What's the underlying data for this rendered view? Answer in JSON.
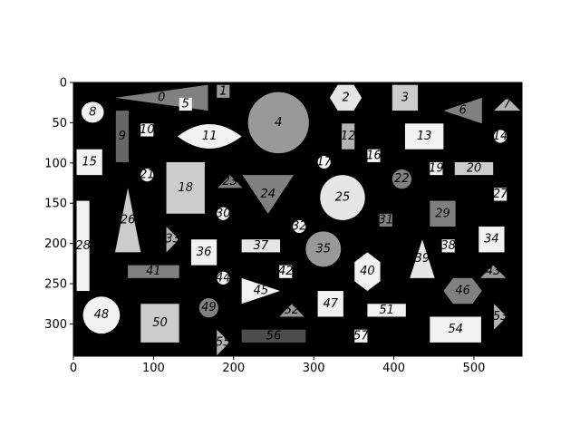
{
  "figure": {
    "background": "#000000",
    "xlim": [
      0,
      560
    ],
    "ylim": [
      340,
      0
    ],
    "xticks": [
      0,
      100,
      200,
      300,
      400,
      500
    ],
    "yticks": [
      0,
      50,
      100,
      150,
      200,
      250,
      300
    ]
  },
  "shapes": [
    {
      "label": "0",
      "type": "triangle-left",
      "x": [
        52,
        168
      ],
      "y": [
        3,
        35
      ],
      "color": "#808080"
    },
    {
      "label": "1",
      "type": "rect",
      "x": [
        179,
        195
      ],
      "y": [
        3,
        19
      ],
      "color": "#999999"
    },
    {
      "label": "2",
      "type": "hexagon",
      "x": [
        320,
        360
      ],
      "y": [
        3,
        35
      ],
      "color": "#e6e6e6"
    },
    {
      "label": "3",
      "type": "rect",
      "x": [
        398,
        430
      ],
      "y": [
        3,
        35
      ],
      "color": "#cccccc"
    },
    {
      "label": "4",
      "type": "circle",
      "x": [
        218,
        294
      ],
      "y": [
        12,
        88
      ],
      "color": "#999999"
    },
    {
      "label": "5",
      "type": "rect",
      "x": [
        132,
        148
      ],
      "y": [
        19,
        35
      ],
      "color": "#f2f2f2"
    },
    {
      "label": "6",
      "type": "triangle-left",
      "x": [
        462,
        510
      ],
      "y": [
        19,
        51
      ],
      "color": "#808080"
    },
    {
      "label": "7",
      "type": "triangle-up",
      "x": [
        525,
        558
      ],
      "y": [
        19,
        35
      ],
      "color": "#b3b3b3"
    },
    {
      "label": "8",
      "type": "circle",
      "x": [
        10,
        38
      ],
      "y": [
        24,
        50
      ],
      "color": "#f2f2f2"
    },
    {
      "label": "9",
      "type": "rect",
      "x": [
        53,
        69
      ],
      "y": [
        35,
        99
      ],
      "color": "#666666"
    },
    {
      "label": "10",
      "type": "rect",
      "x": [
        84,
        100
      ],
      "y": [
        51,
        67
      ],
      "color": "#f2f2f2"
    },
    {
      "label": "11",
      "type": "lens",
      "x": [
        130,
        210
      ],
      "y": [
        51,
        83
      ],
      "color": "#f2f2f2"
    },
    {
      "label": "12",
      "type": "rect",
      "x": [
        335,
        351
      ],
      "y": [
        51,
        83
      ],
      "color": "#b3b3b3"
    },
    {
      "label": "13",
      "type": "rect",
      "x": [
        414,
        462
      ],
      "y": [
        51,
        83
      ],
      "color": "#f2f2f2"
    },
    {
      "label": "14",
      "type": "circle",
      "x": [
        525,
        541
      ],
      "y": [
        59,
        75
      ],
      "color": "#f2f2f2"
    },
    {
      "label": "15",
      "type": "rect",
      "x": [
        4,
        36
      ],
      "y": [
        83,
        115
      ],
      "color": "#f2f2f2"
    },
    {
      "label": "16",
      "type": "rect",
      "x": [
        367,
        383
      ],
      "y": [
        83,
        99
      ],
      "color": "#f2f2f2"
    },
    {
      "label": "17",
      "type": "circle",
      "x": [
        305,
        321
      ],
      "y": [
        91,
        107
      ],
      "color": "#f2f2f2"
    },
    {
      "label": "18",
      "type": "rect",
      "x": [
        116,
        164
      ],
      "y": [
        99,
        163
      ],
      "color": "#cccccc"
    },
    {
      "label": "19",
      "type": "rect",
      "x": [
        445,
        461
      ],
      "y": [
        99,
        115
      ],
      "color": "#f2f2f2"
    },
    {
      "label": "20",
      "type": "rect",
      "x": [
        476,
        524
      ],
      "y": [
        99,
        115
      ],
      "color": "#cccccc"
    },
    {
      "label": "21",
      "type": "circle",
      "x": [
        84,
        100
      ],
      "y": [
        107,
        123
      ],
      "color": "#f2f2f2"
    },
    {
      "label": "22",
      "type": "circle",
      "x": [
        398,
        422
      ],
      "y": [
        108,
        132
      ],
      "color": "#808080"
    },
    {
      "label": "23",
      "type": "triangle-up",
      "x": [
        180,
        211
      ],
      "y": [
        115,
        131
      ],
      "color": "#808080"
    },
    {
      "label": "24",
      "type": "triangle-down",
      "x": [
        211,
        275
      ],
      "y": [
        115,
        163
      ],
      "color": "#808080"
    },
    {
      "label": "25",
      "type": "circle",
      "x": [
        308,
        364
      ],
      "y": [
        115,
        171
      ],
      "color": "#e6e6e6"
    },
    {
      "label": "26",
      "type": "triangle-up",
      "x": [
        52,
        84
      ],
      "y": [
        131,
        211
      ],
      "color": "#cccccc"
    },
    {
      "label": "27",
      "type": "rect",
      "x": [
        525,
        541
      ],
      "y": [
        131,
        147
      ],
      "color": "#f2f2f2"
    },
    {
      "label": "28",
      "type": "rect",
      "x": [
        4,
        20
      ],
      "y": [
        147,
        259
      ],
      "color": "#f2f2f2"
    },
    {
      "label": "29",
      "type": "rect",
      "x": [
        445,
        477
      ],
      "y": [
        147,
        179
      ],
      "color": "#808080"
    },
    {
      "label": "30",
      "type": "circle",
      "x": [
        179,
        195
      ],
      "y": [
        155,
        171
      ],
      "color": "#f2f2f2"
    },
    {
      "label": "31",
      "type": "rect",
      "x": [
        382,
        398
      ],
      "y": [
        163,
        179
      ],
      "color": "#808080"
    },
    {
      "label": "32",
      "type": "circle",
      "x": [
        274,
        290
      ],
      "y": [
        171,
        187
      ],
      "color": "#f2f2f2"
    },
    {
      "label": "33",
      "type": "triangle-right",
      "x": [
        116,
        132
      ],
      "y": [
        179,
        211
      ],
      "color": "#b3b3b3"
    },
    {
      "label": "34",
      "type": "rect",
      "x": [
        506,
        538
      ],
      "y": [
        179,
        211
      ],
      "color": "#f2f2f2"
    },
    {
      "label": "35",
      "type": "circle",
      "x": [
        290,
        334
      ],
      "y": [
        185,
        229
      ],
      "color": "#999999"
    },
    {
      "label": "36",
      "type": "rect",
      "x": [
        147,
        179
      ],
      "y": [
        195,
        227
      ],
      "color": "#f2f2f2"
    },
    {
      "label": "37",
      "type": "rect",
      "x": [
        210,
        258
      ],
      "y": [
        195,
        211
      ],
      "color": "#e6e6e6"
    },
    {
      "label": "38",
      "type": "rect",
      "x": [
        460,
        476
      ],
      "y": [
        195,
        211
      ],
      "color": "#f2f2f2"
    },
    {
      "label": "39",
      "type": "triangle-up",
      "x": [
        420,
        451
      ],
      "y": [
        195,
        243
      ],
      "color": "#e6e6e6"
    },
    {
      "label": "40",
      "type": "hexagon-v",
      "x": [
        351,
        383
      ],
      "y": [
        211,
        259
      ],
      "color": "#f2f2f2"
    },
    {
      "label": "41",
      "type": "rect",
      "x": [
        68,
        132
      ],
      "y": [
        227,
        243
      ],
      "color": "#808080"
    },
    {
      "label": "42",
      "type": "rect",
      "x": [
        257,
        273
      ],
      "y": [
        227,
        243
      ],
      "color": "#f2f2f2"
    },
    {
      "label": "43",
      "type": "triangle-up",
      "x": [
        508,
        540
      ],
      "y": [
        227,
        243
      ],
      "color": "#999999"
    },
    {
      "label": "44",
      "type": "circle",
      "x": [
        179,
        195
      ],
      "y": [
        235,
        251
      ],
      "color": "#f2f2f2"
    },
    {
      "label": "45",
      "type": "triangle-right",
      "x": [
        210,
        258
      ],
      "y": [
        243,
        275
      ],
      "color": "#f2f2f2"
    },
    {
      "label": "46",
      "type": "hexagon",
      "x": [
        462,
        510
      ],
      "y": [
        243,
        275
      ],
      "color": "#808080"
    },
    {
      "label": "47",
      "type": "rect",
      "x": [
        305,
        337
      ],
      "y": [
        259,
        291
      ],
      "color": "#f2f2f2"
    },
    {
      "label": "48",
      "type": "circle",
      "x": [
        12,
        58
      ],
      "y": [
        266,
        312
      ],
      "color": "#f2f2f2"
    },
    {
      "label": "49",
      "type": "circle",
      "x": [
        157,
        181
      ],
      "y": [
        268,
        292
      ],
      "color": "#808080"
    },
    {
      "label": "50",
      "type": "rect",
      "x": [
        84,
        132
      ],
      "y": [
        275,
        323
      ],
      "color": "#cccccc"
    },
    {
      "label": "51",
      "type": "rect",
      "x": [
        367,
        415
      ],
      "y": [
        275,
        291
      ],
      "color": "#f2f2f2"
    },
    {
      "label": "52",
      "type": "triangle-up",
      "x": [
        257,
        288
      ],
      "y": [
        275,
        291
      ],
      "color": "#999999"
    },
    {
      "label": "53",
      "type": "triangle-right",
      "x": [
        525,
        541
      ],
      "y": [
        275,
        307
      ],
      "color": "#b3b3b3"
    },
    {
      "label": "54",
      "type": "rect",
      "x": [
        445,
        509
      ],
      "y": [
        291,
        323
      ],
      "color": "#f2f2f2"
    },
    {
      "label": "55",
      "type": "triangle-right",
      "x": [
        179,
        195
      ],
      "y": [
        307,
        339
      ],
      "color": "#b3b3b3"
    },
    {
      "label": "56",
      "type": "rect",
      "x": [
        210,
        290
      ],
      "y": [
        307,
        323
      ],
      "color": "#4d4d4d"
    },
    {
      "label": "57",
      "type": "rect",
      "x": [
        351,
        367
      ],
      "y": [
        307,
        323
      ],
      "color": "#f2f2f2"
    }
  ]
}
